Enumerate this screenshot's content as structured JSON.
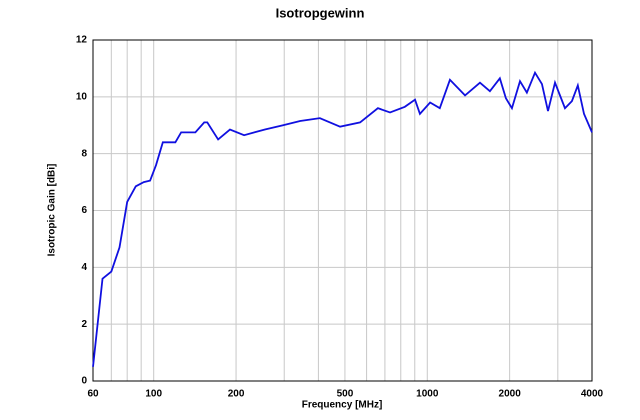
{
  "chart_data": {
    "type": "line",
    "title": "Isotropgewinn",
    "x_label": "Frequency [MHz]",
    "y_label": "Isotropic Gain [dBi]",
    "xscale": "log",
    "grid": true,
    "xlim": [
      60,
      4000
    ],
    "ylim": [
      0,
      12
    ],
    "xticks": [
      60,
      100,
      200,
      500,
      1000,
      2000,
      4000
    ],
    "xminor": [
      70,
      80,
      90,
      300,
      400,
      600,
      700,
      800,
      900,
      3000
    ],
    "yticks": [
      0,
      2,
      4,
      6,
      8,
      10,
      12
    ],
    "series": [
      {
        "color": "#1010e0",
        "x": [
          60,
          65,
          70,
          75,
          80,
          86,
          92,
          97,
          102,
          108,
          120,
          126,
          142,
          153,
          157,
          172,
          190,
          214,
          255,
          297,
          343,
          405,
          480,
          568,
          660,
          731,
          828,
          902,
          940,
          1024,
          1111,
          1210,
          1374,
          1558,
          1694,
          1842,
          1938,
          2039,
          2182,
          2312,
          2476,
          2625,
          2762,
          2930,
          3186,
          3378,
          3550,
          3740,
          4000
        ],
        "values": [
          0.5,
          3.6,
          3.85,
          4.7,
          6.3,
          6.85,
          7.0,
          7.05,
          7.6,
          8.4,
          8.4,
          8.75,
          8.75,
          9.1,
          9.1,
          8.5,
          8.85,
          8.65,
          8.85,
          9.0,
          9.15,
          9.25,
          8.95,
          9.1,
          9.6,
          9.45,
          9.65,
          9.9,
          9.4,
          9.8,
          9.6,
          10.6,
          10.05,
          10.5,
          10.2,
          10.65,
          9.95,
          9.6,
          10.55,
          10.15,
          10.85,
          10.45,
          9.5,
          10.5,
          9.6,
          9.85,
          10.4,
          9.4,
          8.75
        ]
      }
    ]
  }
}
